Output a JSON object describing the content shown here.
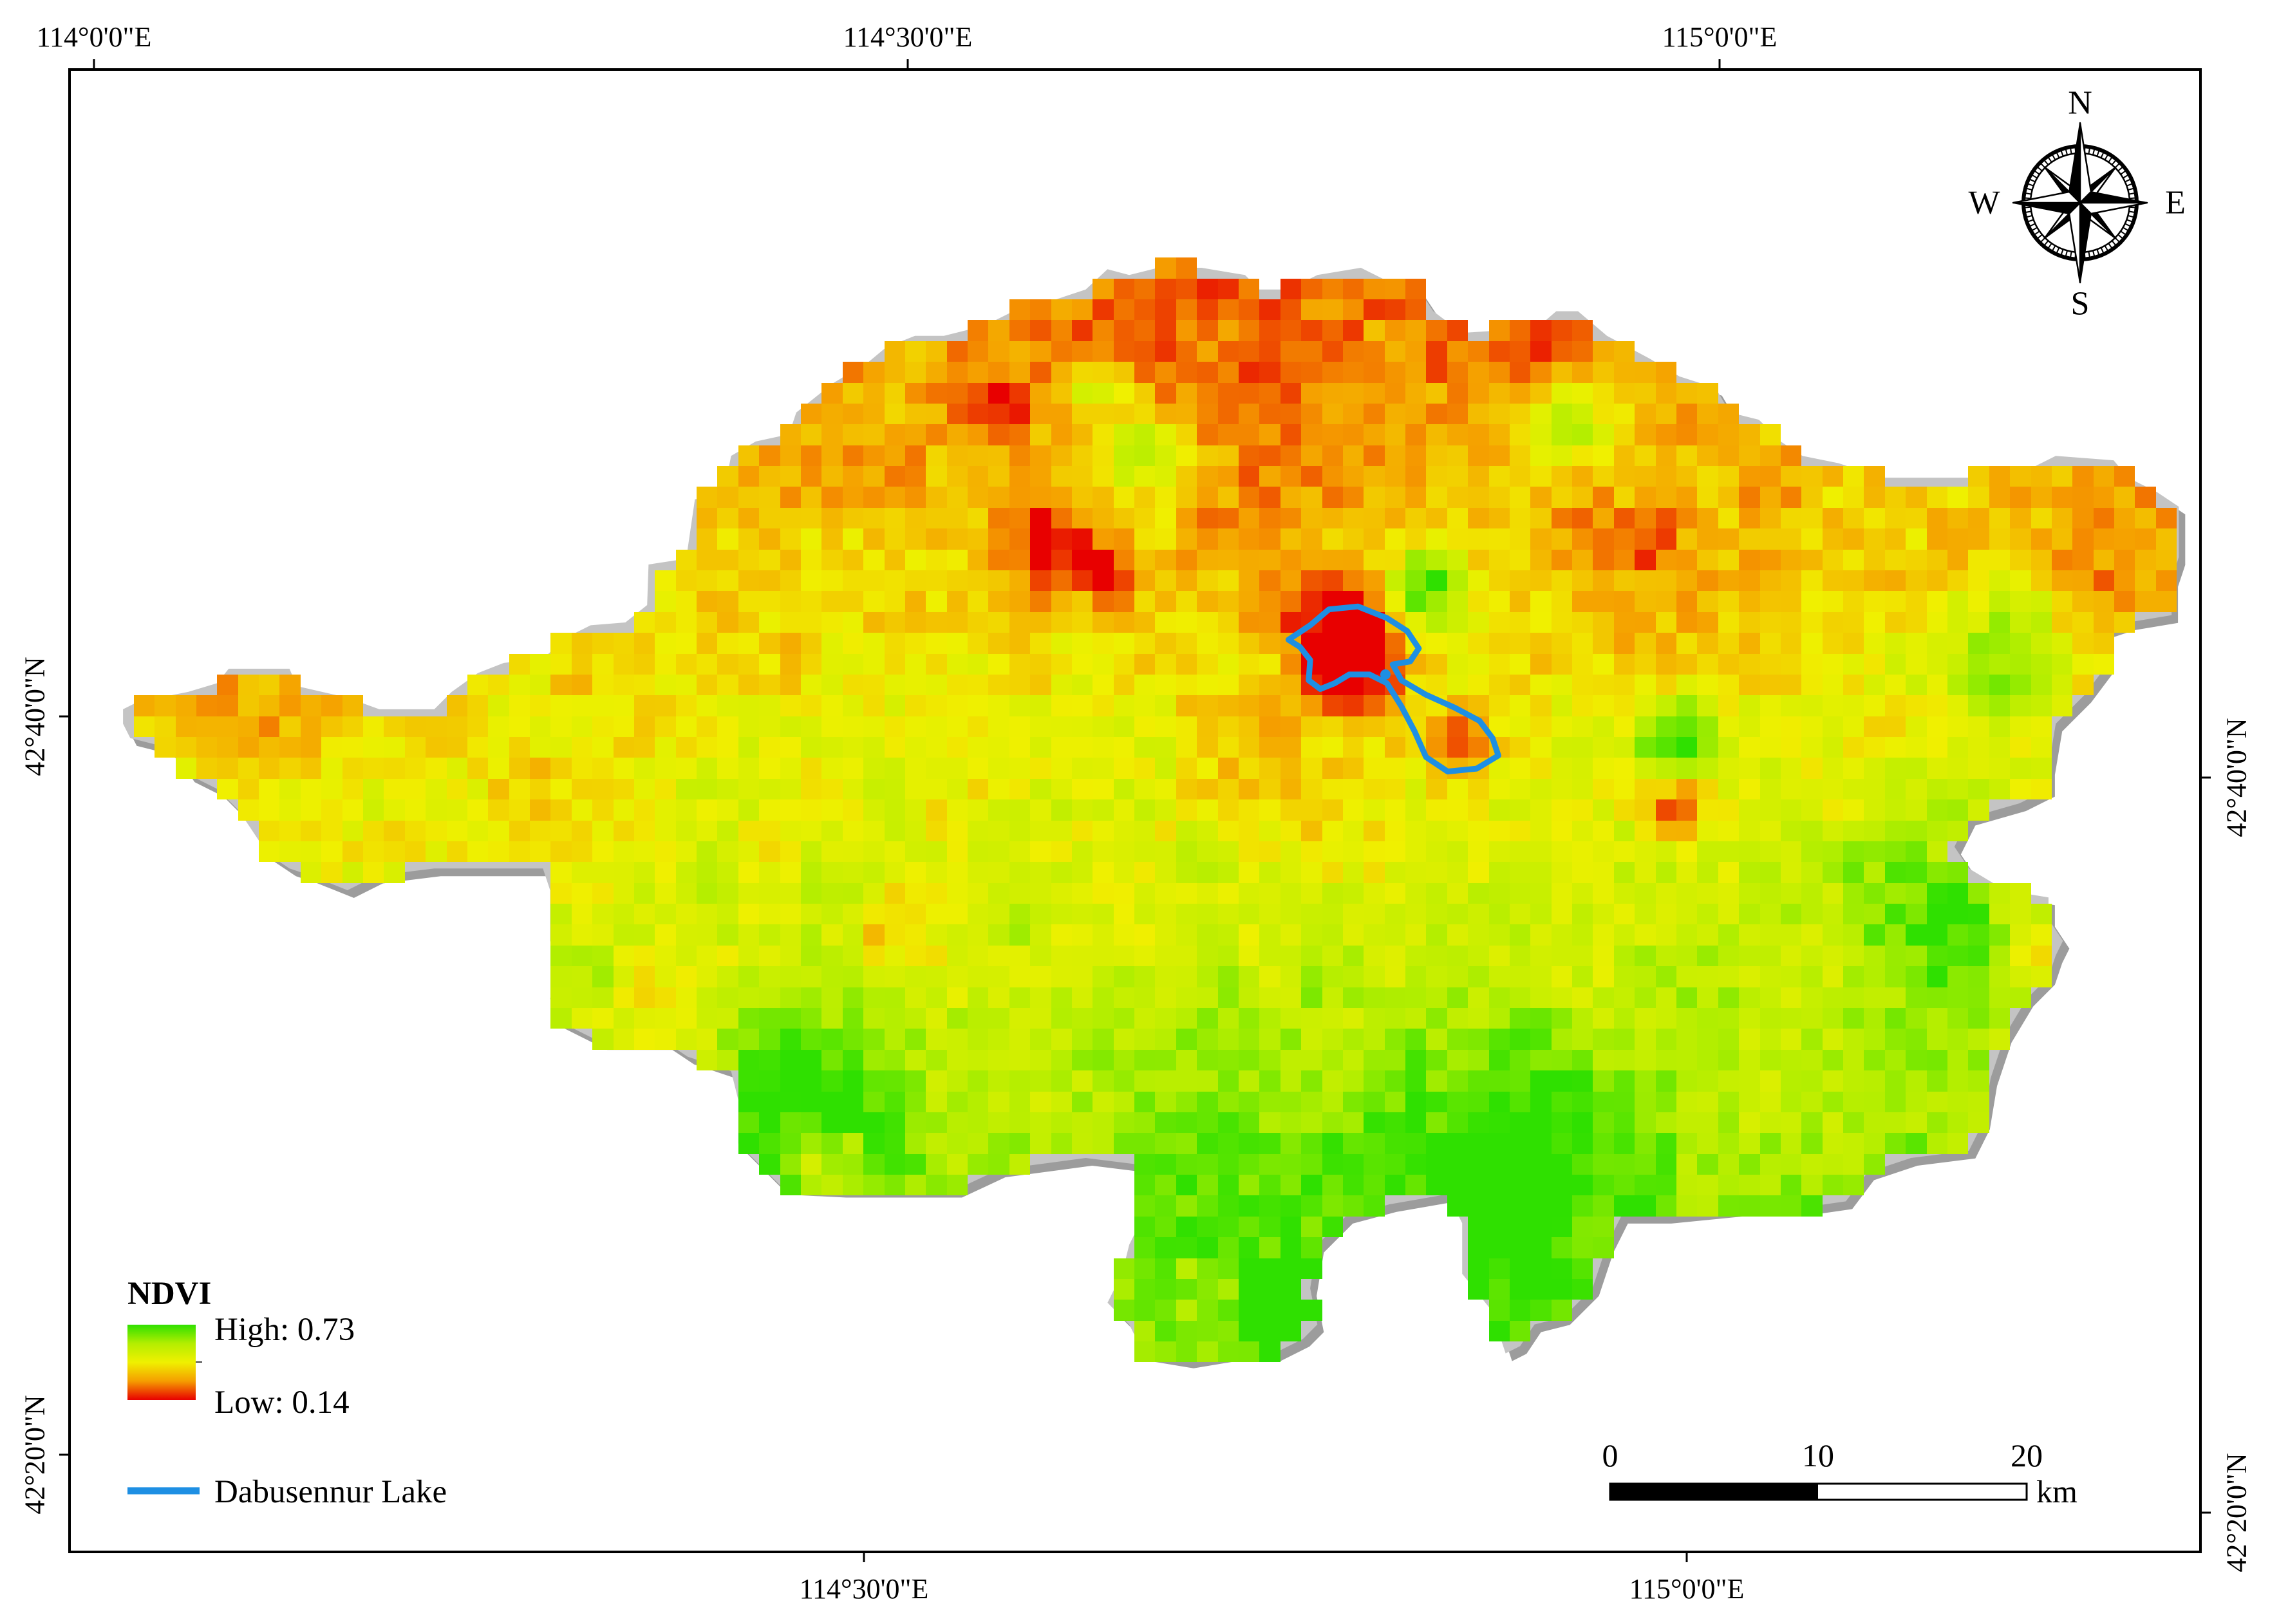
{
  "map": {
    "graticule": {
      "top": [
        "114°0'0\"E",
        "114°30'0\"E",
        "115°0'0\"E"
      ],
      "bottom": [
        "114°30'0\"E",
        "115°0'0\"E"
      ],
      "left": [
        "42°40'0\"N",
        "42°20'0\"N"
      ],
      "right": [
        "42°40'0\"N",
        "42°20'0\"N"
      ]
    },
    "north_arrow": {
      "icon": "compass-rose-icon",
      "n": "N",
      "e": "E",
      "s": "S",
      "w": "W"
    },
    "legend": {
      "title": "NDVI",
      "high_label": "High: 0.73",
      "low_label": "Low: 0.14",
      "ramp_colors": [
        "#2fe000",
        "#b4ee00",
        "#f0f000",
        "#f59d00",
        "#e80000"
      ],
      "lake_label": "Dabusennur Lake",
      "lake_color": "#1e8fe3"
    },
    "scale_bar": {
      "labels": [
        "0",
        "10",
        "20"
      ],
      "unit": "km"
    }
  }
}
